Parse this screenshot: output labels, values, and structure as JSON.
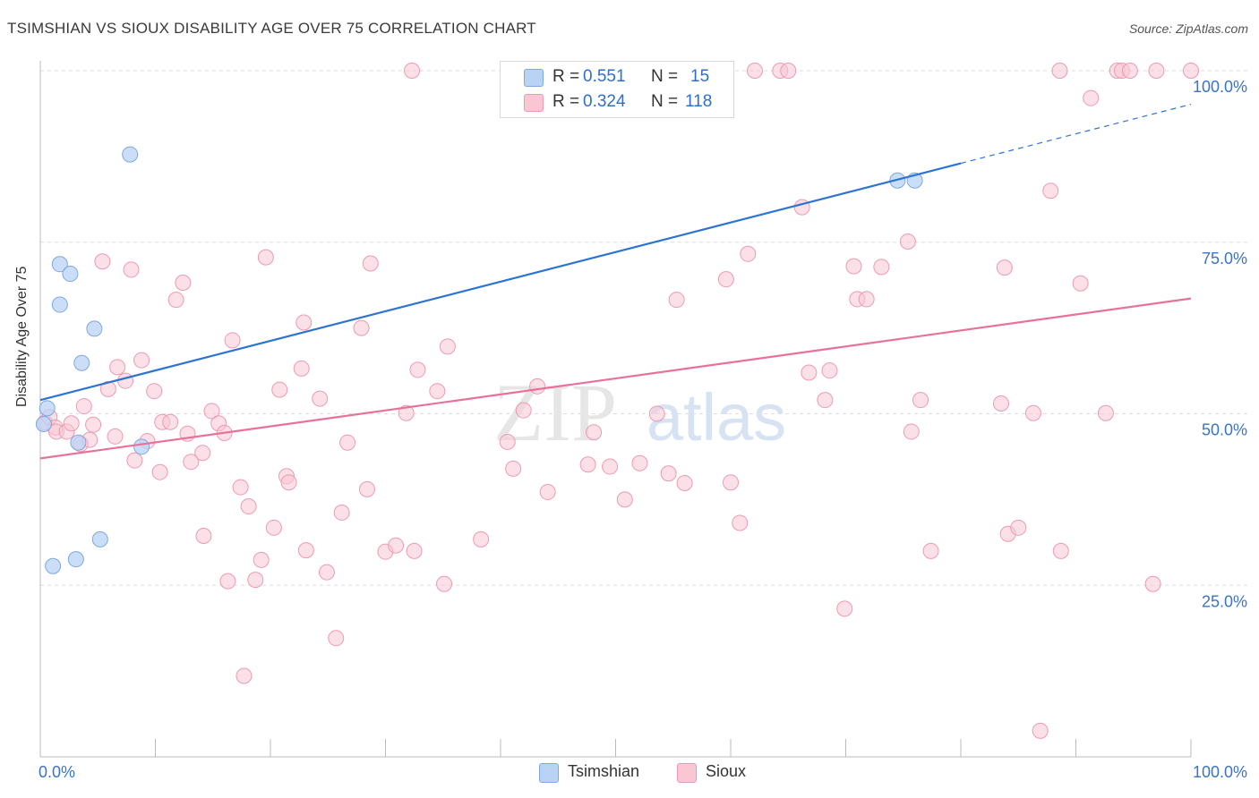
{
  "title": "TSIMSHIAN VS SIOUX DISABILITY AGE OVER 75 CORRELATION CHART",
  "source": "Source: ZipAtlas.com",
  "watermark": {
    "zip": "ZIP",
    "atlas": "atlas"
  },
  "legend_top": [
    {
      "r_label": "R = ",
      "r_value": "0.551",
      "n_label": "N = ",
      "n_value": "15"
    },
    {
      "r_label": "R = ",
      "r_value": "0.324",
      "n_label": "N = ",
      "n_value": "118"
    }
  ],
  "legend_bottom": [
    {
      "label": "Tsimshian"
    },
    {
      "label": "Sioux"
    }
  ],
  "colors": {
    "tsimshian_fill": "#b9d3f5",
    "tsimshian_stroke": "#7ea8e0",
    "tsimshian_line": "#2d74d2",
    "sioux_fill": "#f9c6d4",
    "sioux_stroke": "#ec9ab2",
    "sioux_line": "#e8719b",
    "axis_label": "#3a73c8",
    "grid": "#dddddd"
  },
  "chart_data": {
    "type": "scatter",
    "title": "TSIMSHIAN VS SIOUX DISABILITY AGE OVER 75 CORRELATION CHART",
    "xlabel": "",
    "ylabel": "Disability Age Over 75",
    "xlim": [
      0,
      100
    ],
    "ylim": [
      0,
      100
    ],
    "x_tick_labels": [
      "0.0%",
      "100.0%"
    ],
    "y_ticks": [
      25,
      50,
      75,
      100
    ],
    "y_tick_labels": [
      "25.0%",
      "50.0%",
      "75.0%",
      "100.0%"
    ],
    "grid": true,
    "series": [
      {
        "name": "Tsimshian",
        "r": 0.551,
        "n": 15,
        "trend": {
          "x0": 0,
          "y0": 52.0,
          "x1": 80,
          "y1": 86.5,
          "dash_to_x": 100,
          "dash_to_y": 95.1
        },
        "points": [
          [
            0.3,
            48.5
          ],
          [
            0.6,
            50.8
          ],
          [
            1.1,
            27.8
          ],
          [
            1.7,
            65.9
          ],
          [
            1.7,
            71.8
          ],
          [
            2.6,
            70.4
          ],
          [
            3.1,
            28.8
          ],
          [
            3.3,
            45.8
          ],
          [
            3.6,
            57.4
          ],
          [
            4.7,
            62.4
          ],
          [
            5.2,
            31.7
          ],
          [
            7.8,
            87.8
          ],
          [
            8.8,
            45.2
          ],
          [
            74.5,
            84.0
          ],
          [
            76.0,
            84.0
          ]
        ]
      },
      {
        "name": "Sioux",
        "r": 0.324,
        "n": 118,
        "trend": {
          "x0": 0,
          "y0": 43.5,
          "x1": 100,
          "y1": 66.8
        },
        "points": [
          [
            0.4,
            48.7
          ],
          [
            0.8,
            49.5
          ],
          [
            1.3,
            48.0
          ],
          [
            1.4,
            47.4
          ],
          [
            2.3,
            47.4
          ],
          [
            2.7,
            48.6
          ],
          [
            3.5,
            45.6
          ],
          [
            3.8,
            51.1
          ],
          [
            4.3,
            46.2
          ],
          [
            4.6,
            48.4
          ],
          [
            5.4,
            72.2
          ],
          [
            5.9,
            53.6
          ],
          [
            6.5,
            46.7
          ],
          [
            6.7,
            56.8
          ],
          [
            7.4,
            54.8
          ],
          [
            7.9,
            71.0
          ],
          [
            8.2,
            43.2
          ],
          [
            8.8,
            57.8
          ],
          [
            9.3,
            46.0
          ],
          [
            9.9,
            53.3
          ],
          [
            10.4,
            41.5
          ],
          [
            10.6,
            48.8
          ],
          [
            11.3,
            48.8
          ],
          [
            11.8,
            66.6
          ],
          [
            12.4,
            69.1
          ],
          [
            12.8,
            47.1
          ],
          [
            13.1,
            43.0
          ],
          [
            14.1,
            44.3
          ],
          [
            14.2,
            32.2
          ],
          [
            14.9,
            50.4
          ],
          [
            15.5,
            48.6
          ],
          [
            16.0,
            47.2
          ],
          [
            16.3,
            25.6
          ],
          [
            16.7,
            60.7
          ],
          [
            17.4,
            39.3
          ],
          [
            17.7,
            11.8
          ],
          [
            18.1,
            36.5
          ],
          [
            18.7,
            25.8
          ],
          [
            19.2,
            28.7
          ],
          [
            19.6,
            72.8
          ],
          [
            20.3,
            33.4
          ],
          [
            20.8,
            53.5
          ],
          [
            21.4,
            40.9
          ],
          [
            21.6,
            40.0
          ],
          [
            22.7,
            56.6
          ],
          [
            22.9,
            63.3
          ],
          [
            23.1,
            30.1
          ],
          [
            24.3,
            52.2
          ],
          [
            24.9,
            26.9
          ],
          [
            25.7,
            17.3
          ],
          [
            26.2,
            35.6
          ],
          [
            26.7,
            45.8
          ],
          [
            27.9,
            62.5
          ],
          [
            28.4,
            39.0
          ],
          [
            28.7,
            71.9
          ],
          [
            30.0,
            29.9
          ],
          [
            30.9,
            30.8
          ],
          [
            31.8,
            50.1
          ],
          [
            32.3,
            100.0
          ],
          [
            32.5,
            30.0
          ],
          [
            32.8,
            56.4
          ],
          [
            34.5,
            53.3
          ],
          [
            35.1,
            25.2
          ],
          [
            35.4,
            59.8
          ],
          [
            38.3,
            31.7
          ],
          [
            40.6,
            45.9
          ],
          [
            41.1,
            42.0
          ],
          [
            42.0,
            50.5
          ],
          [
            43.2,
            54.0
          ],
          [
            44.1,
            38.6
          ],
          [
            47.6,
            42.6
          ],
          [
            48.1,
            47.3
          ],
          [
            49.5,
            42.3
          ],
          [
            50.8,
            37.5
          ],
          [
            52.1,
            42.8
          ],
          [
            53.6,
            50.0
          ],
          [
            54.6,
            41.3
          ],
          [
            55.3,
            66.6
          ],
          [
            56.0,
            39.9
          ],
          [
            59.6,
            69.6
          ],
          [
            60.0,
            40.0
          ],
          [
            60.8,
            34.1
          ],
          [
            61.5,
            73.3
          ],
          [
            62.1,
            100.0
          ],
          [
            64.3,
            100.0
          ],
          [
            65.0,
            100.0
          ],
          [
            66.2,
            80.1
          ],
          [
            66.8,
            56.0
          ],
          [
            68.2,
            52.0
          ],
          [
            68.6,
            56.3
          ],
          [
            69.9,
            21.6
          ],
          [
            70.7,
            71.5
          ],
          [
            71.0,
            66.7
          ],
          [
            71.8,
            66.7
          ],
          [
            73.1,
            71.4
          ],
          [
            75.4,
            75.1
          ],
          [
            75.7,
            47.4
          ],
          [
            76.5,
            52.0
          ],
          [
            77.4,
            30.0
          ],
          [
            83.5,
            51.5
          ],
          [
            83.8,
            71.3
          ],
          [
            84.1,
            32.5
          ],
          [
            85.0,
            33.4
          ],
          [
            86.3,
            50.1
          ],
          [
            86.9,
            3.8
          ],
          [
            87.8,
            82.5
          ],
          [
            88.6,
            100.0
          ],
          [
            88.7,
            30.0
          ],
          [
            90.4,
            69.0
          ],
          [
            91.3,
            96.0
          ],
          [
            92.6,
            50.1
          ],
          [
            93.6,
            100.0
          ],
          [
            94.0,
            100.0
          ],
          [
            94.7,
            100.0
          ],
          [
            96.7,
            25.2
          ],
          [
            97.0,
            100.0
          ],
          [
            100.0,
            100.0
          ]
        ]
      }
    ]
  }
}
